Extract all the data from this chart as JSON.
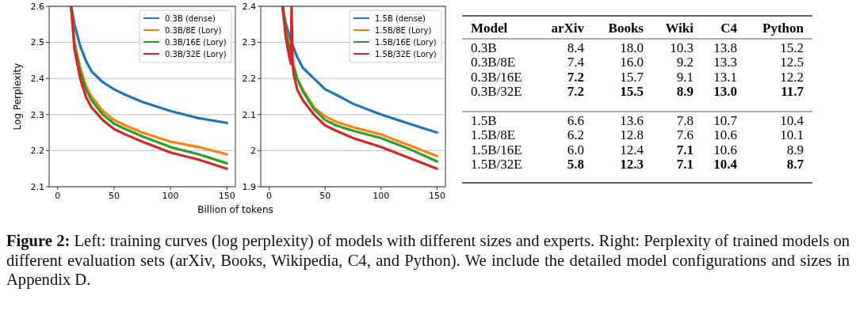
{
  "chart_data": [
    {
      "type": "line",
      "ylabel": "Log Perplexity",
      "xlabel": "Billion of tokens",
      "xlim": [
        -7.5,
        157.5
      ],
      "ylim": [
        2.1,
        2.6
      ],
      "xticks": [
        0,
        50,
        100,
        150
      ],
      "yticks": [
        2.1,
        2.2,
        2.3,
        2.4,
        2.5,
        2.6
      ],
      "grid": "y",
      "legend": "top right",
      "x": [
        12,
        15,
        20,
        25,
        30,
        40,
        50,
        60,
        75,
        100,
        125,
        150
      ],
      "series": [
        {
          "name": "0.3B (dense)",
          "color": "#1f77b4",
          "values": [
            2.6,
            2.55,
            2.49,
            2.45,
            2.42,
            2.39,
            2.37,
            2.355,
            2.335,
            2.31,
            2.29,
            2.277
          ]
        },
        {
          "name": "0.3B/8E (Lory)",
          "color": "#ff7f0e",
          "values": [
            2.6,
            2.5,
            2.43,
            2.38,
            2.35,
            2.31,
            2.285,
            2.27,
            2.25,
            2.225,
            2.21,
            2.19
          ]
        },
        {
          "name": "0.3B/16E (Lory)",
          "color": "#2ca02c",
          "values": [
            2.6,
            2.49,
            2.42,
            2.37,
            2.34,
            2.3,
            2.275,
            2.26,
            2.24,
            2.21,
            2.19,
            2.165
          ]
        },
        {
          "name": "0.3B/32E (Lory)",
          "color": "#d62728",
          "values": [
            2.6,
            2.48,
            2.4,
            2.35,
            2.32,
            2.285,
            2.26,
            2.245,
            2.225,
            2.195,
            2.175,
            2.15
          ]
        }
      ]
    },
    {
      "type": "line",
      "xlim": [
        -7.5,
        157.5
      ],
      "ylim": [
        1.9,
        2.4
      ],
      "xticks": [
        0,
        50,
        100,
        150
      ],
      "yticks": [
        1.9,
        2.0,
        2.1,
        2.2,
        2.3,
        2.4
      ],
      "grid": "y",
      "legend": "top right",
      "x": [
        12,
        15,
        20,
        25,
        30,
        40,
        50,
        60,
        75,
        100,
        125,
        150
      ],
      "series": [
        {
          "name": "1.5B (dense)",
          "color": "#1f77b4",
          "values": [
            2.4,
            2.35,
            2.3,
            2.26,
            2.23,
            2.2,
            2.17,
            2.155,
            2.13,
            2.1,
            2.075,
            2.05
          ]
        },
        {
          "name": "1.5B/8E (Lory)",
          "color": "#ff7f0e",
          "values": [
            2.4,
            2.33,
            2.26,
            2.2,
            2.17,
            2.12,
            2.095,
            2.08,
            2.065,
            2.045,
            2.015,
            1.985
          ]
        },
        {
          "name": "1.5B/16E (Lory)",
          "color": "#2ca02c",
          "values": [
            2.4,
            2.33,
            2.25,
            2.2,
            2.165,
            2.115,
            2.085,
            2.07,
            2.055,
            2.035,
            2.005,
            1.97
          ]
        },
        {
          "name": "1.5B/32E (Lory)",
          "color": "#d62728",
          "x": [
            12,
            15,
            18,
            19.5,
            20,
            21,
            22,
            25,
            30,
            40,
            50,
            60,
            75,
            100,
            125,
            150
          ],
          "values": [
            2.4,
            2.31,
            2.26,
            2.24,
            2.4,
            2.24,
            2.21,
            2.17,
            2.14,
            2.1,
            2.07,
            2.055,
            2.035,
            2.01,
            1.98,
            1.95
          ]
        }
      ]
    },
    {
      "type": "other",
      "ylabel": "Model",
      "categories": [
        "arXiv",
        "Books",
        "Wiki",
        "C4",
        "Python"
      ],
      "y_categories": [
        "0.3B",
        "0.3B/8E",
        "0.3B/16E",
        "0.3B/32E",
        "1.5B",
        "1.5B/8E",
        "1.5B/16E",
        "1.5B/32E"
      ],
      "cell_labels": [
        [
          "8.4",
          "18.0",
          "10.3",
          "13.8",
          "15.2"
        ],
        [
          "7.4",
          "16.0",
          "9.2",
          "13.3",
          "12.5"
        ],
        [
          "7.2",
          "15.7",
          "9.1",
          "13.1",
          "12.2"
        ],
        [
          "7.2",
          "15.5",
          "8.9",
          "13.0",
          "11.7"
        ],
        [
          "6.6",
          "13.6",
          "7.8",
          "10.7",
          "10.4"
        ],
        [
          "6.2",
          "12.8",
          "7.6",
          "10.6",
          "10.1"
        ],
        [
          "6.0",
          "12.4",
          "7.1",
          "10.6",
          "8.9"
        ],
        [
          "5.8",
          "12.3",
          "7.1",
          "10.4",
          "8.7"
        ]
      ],
      "annotations": [
        "Figure 2: Left: training curves (log perplexity) of models with different sizes and experts. Right: Perplexity of trained models on different evaluation sets (arXiv, Books, Wikipedia, C4, and Python). We include the detailed model configurations and sizes in Appendix D."
      ]
    }
  ]
}
